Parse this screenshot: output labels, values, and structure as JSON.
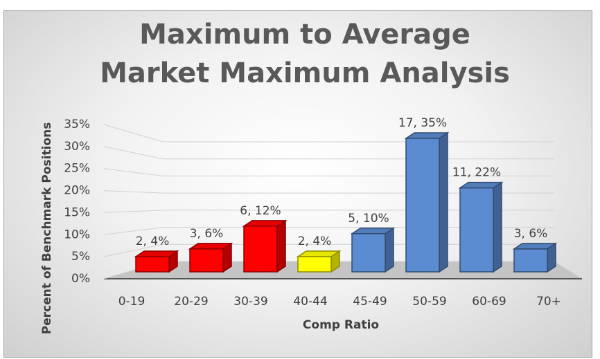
{
  "chart_data": {
    "type": "bar3d",
    "title": "Maximum to Average Market Maximum Analysis",
    "x_label": "Comp Ratio",
    "y_label": "Percent of Benchmark Positions",
    "categories": [
      "0-19",
      "20-29",
      "30-39",
      "40-44",
      "45-49",
      "50-59",
      "60-69",
      "70+"
    ],
    "values": [
      4,
      6,
      12,
      4,
      10,
      35,
      22,
      6
    ],
    "value_labels": [
      "2, 4%",
      "3, 6%",
      "6, 12%",
      "2, 4%",
      "5, 10%",
      "17, 35%",
      "11, 22%",
      "3, 6%"
    ],
    "colors": [
      "#ff0000",
      "#ff0000",
      "#ff0000",
      "#ffff00",
      "#5b8bd0",
      "#5b8bd0",
      "#5b8bd0",
      "#5b8bd0"
    ],
    "ylim": [
      0,
      35
    ],
    "yticks": [
      {
        "value": 0,
        "label": "0%"
      },
      {
        "value": 5,
        "label": "5%"
      },
      {
        "value": 10,
        "label": "10%"
      },
      {
        "value": 15,
        "label": "15%"
      },
      {
        "value": 20,
        "label": "20%"
      },
      {
        "value": 25,
        "label": "25%"
      },
      {
        "value": 30,
        "label": "30%"
      },
      {
        "value": 35,
        "label": "35%"
      }
    ],
    "grid": true
  }
}
